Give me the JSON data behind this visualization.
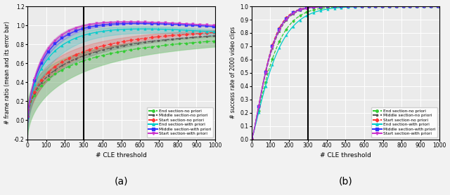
{
  "xlim": [
    0,
    1000
  ],
  "vline_x": 300,
  "plot_a": {
    "ylim": [
      -0.2,
      1.2
    ],
    "yticks": [
      -0.2,
      0.0,
      0.2,
      0.4,
      0.6,
      0.8,
      1.0,
      1.2
    ],
    "ylabel": "# frame ratio (mean and its error bar)",
    "xlabel": "# CLE threshold",
    "label_a": "(a)"
  },
  "plot_b": {
    "ylim": [
      0,
      1.0
    ],
    "yticks": [
      0.0,
      0.1,
      0.2,
      0.3,
      0.4,
      0.5,
      0.6,
      0.7,
      0.8,
      0.9,
      1.0
    ],
    "ylabel": "# success rate of 2000 video clips",
    "xlabel": "# CLE threshold",
    "label_b": "(b)"
  },
  "colors": {
    "end_nop": "#33cc33",
    "mid_nop": "#555555",
    "start_nop": "#ff3333",
    "end_wp": "#00cccc",
    "mid_wp": "#3333ff",
    "start_wp": "#cc33cc"
  },
  "bg_color": "#eeeeee",
  "grid_color": "#ffffff",
  "xticks": [
    0,
    100,
    200,
    300,
    400,
    500,
    600,
    700,
    800,
    900,
    1000
  ]
}
